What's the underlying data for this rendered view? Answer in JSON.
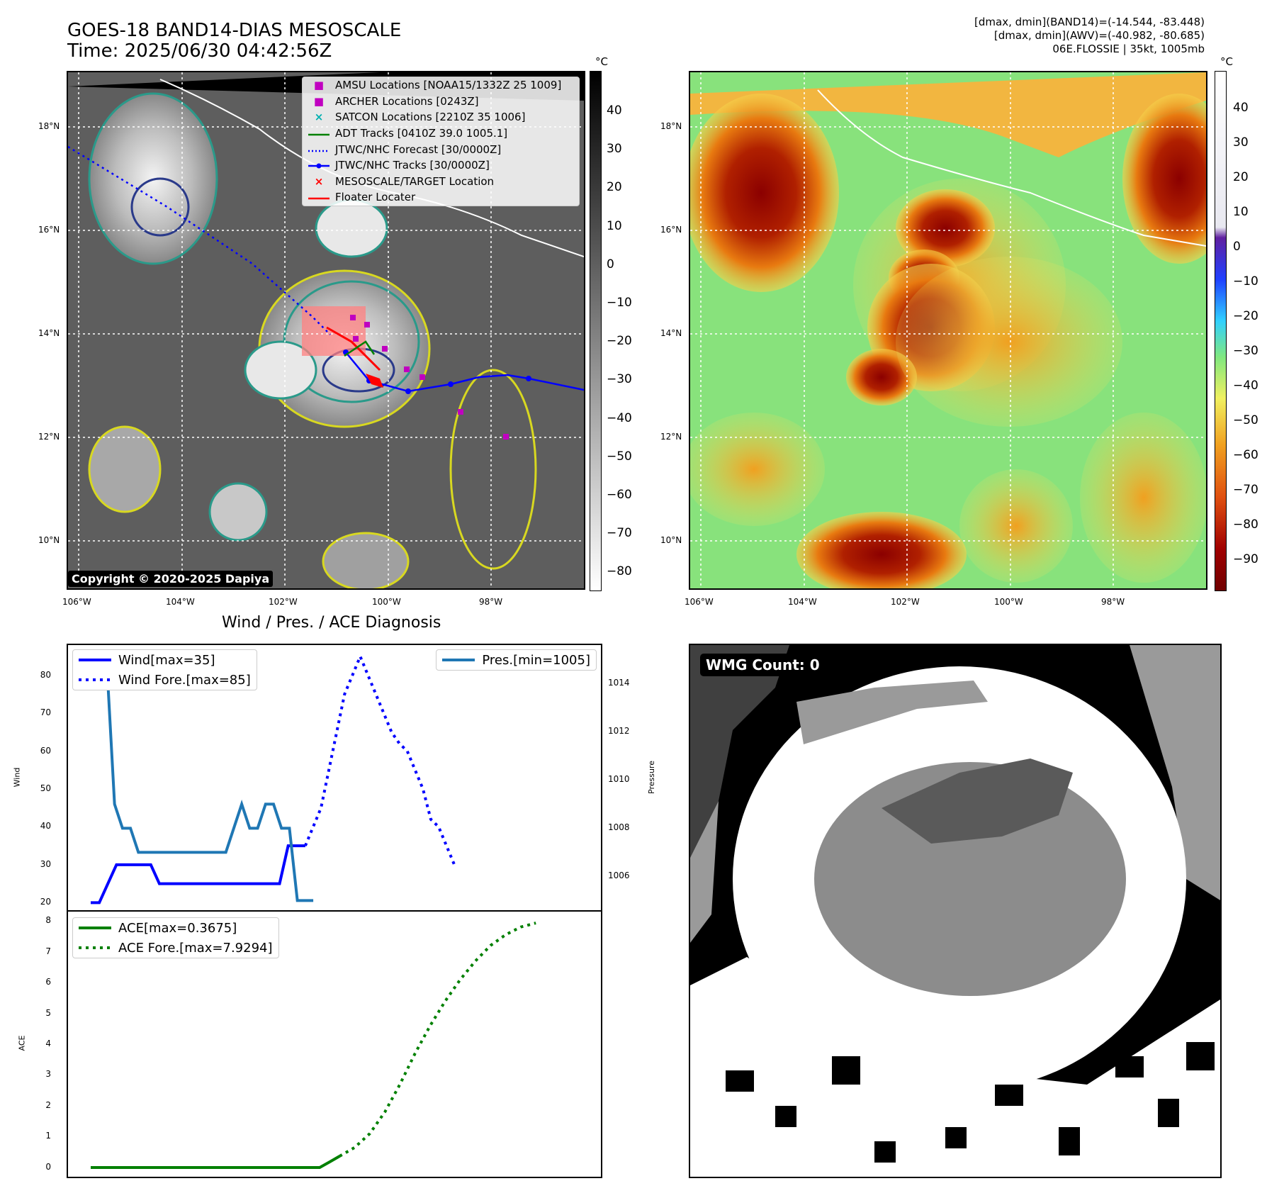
{
  "header": {
    "title_line1": "GOES-18 BAND14-DIAS MESOSCALE",
    "title_line2": "Time: 2025/06/30 04:42:56Z",
    "info_line1": "[dmax, dmin](BAND14)=(-14.544, -83.448)",
    "info_line2": "[dmax, dmin](AWV)=(-40.982, -80.685)",
    "info_line3": "06E.FLOSSIE | 35kt, 1005mb"
  },
  "map": {
    "lat_ticks": [
      "18°N",
      "16°N",
      "14°N",
      "12°N",
      "10°N"
    ],
    "lon_ticks": [
      "106°W",
      "104°W",
      "102°W",
      "100°W",
      "98°W"
    ],
    "copyright": "Copyright © 2020-2025 Dapiya",
    "legend": [
      {
        "label": "AMSU Locations [NOAA15/1332Z 25 1009]",
        "symbol": "■",
        "color": "#c000c0"
      },
      {
        "label": "ARCHER Locations [0243Z]",
        "symbol": "■",
        "color": "#c000c0"
      },
      {
        "label": "SATCON Locations [2210Z 35 1006]",
        "symbol": "×",
        "color": "#00b0b0"
      },
      {
        "label": "ADT Tracks [0410Z 39.0 1005.1]",
        "symbol": "line",
        "color": "#008000"
      },
      {
        "label": "JTWC/NHC Forecast [30/0000Z]",
        "symbol": "dotted",
        "color": "#0000ff"
      },
      {
        "label": "JTWC/NHC Tracks [30/0000Z]",
        "symbol": "line-dot",
        "color": "#0000ff"
      },
      {
        "label": "MESOSCALE/TARGET Location",
        "symbol": "×",
        "color": "#ff0000"
      },
      {
        "label": "Floater Locater",
        "symbol": "line",
        "color": "#ff0000"
      }
    ]
  },
  "colorbar_left": {
    "unit": "°C",
    "ticks": [
      "40",
      "30",
      "20",
      "10",
      "0",
      "−10",
      "−20",
      "−30",
      "−40",
      "−50",
      "−60",
      "−70",
      "−80"
    ]
  },
  "colorbar_right": {
    "unit": "°C",
    "ticks": [
      "40",
      "30",
      "20",
      "10",
      "0",
      "−10",
      "−20",
      "−30",
      "−40",
      "−50",
      "−60",
      "−70",
      "−80",
      "−90"
    ]
  },
  "wmg": {
    "label": "WMG Count: 0"
  },
  "chart_data": [
    {
      "type": "line",
      "title": "Wind / Pres. / ACE Diagnosis",
      "ylabel": "Wind",
      "y2label": "Pressure",
      "ylim": [
        18,
        88
      ],
      "y2lim": [
        1004.6,
        1015.6
      ],
      "yticks": [
        "80",
        "70",
        "60",
        "50",
        "40",
        "30",
        "20"
      ],
      "y2ticks": [
        "1014",
        "1012",
        "1010",
        "1008",
        "1006"
      ],
      "series": [
        {
          "name": "Wind[max=35]",
          "axis": "left",
          "style": "solid",
          "color": "#0000ff",
          "values": [
            20,
            20,
            25,
            30,
            30,
            30,
            30,
            30,
            25,
            25,
            25,
            25,
            25,
            25,
            25,
            25,
            25,
            25,
            25,
            25,
            25,
            25,
            25,
            35,
            35,
            35
          ]
        },
        {
          "name": "Wind Fore.[max=85]",
          "axis": "left",
          "style": "dotted",
          "color": "#0000ff",
          "values": [
            35,
            40,
            45,
            55,
            65,
            75,
            80,
            85,
            80,
            75,
            70,
            65,
            62,
            60,
            55,
            50,
            42,
            40,
            35,
            30
          ]
        },
        {
          "name": "Pres.[min=1005]",
          "axis": "right",
          "style": "solid",
          "color": "#1f77b4",
          "values": [
            1015,
            1015,
            1015,
            1009,
            1008,
            1008,
            1007,
            1007,
            1007,
            1007,
            1007,
            1007,
            1007,
            1007,
            1007,
            1007,
            1007,
            1007,
            1008,
            1009,
            1008,
            1008,
            1009,
            1009,
            1008,
            1008,
            1005,
            1005,
            1005
          ]
        }
      ]
    },
    {
      "type": "line",
      "ylabel": "ACE",
      "ylim": [
        -0.3,
        8.3
      ],
      "yticks": [
        "8",
        "7",
        "6",
        "5",
        "4",
        "3",
        "2",
        "1",
        "0"
      ],
      "series": [
        {
          "name": "ACE[max=0.3675]",
          "style": "solid",
          "color": "#008000",
          "values": [
            0,
            0,
            0,
            0,
            0,
            0,
            0,
            0,
            0,
            0,
            0,
            0,
            0,
            0,
            0,
            0,
            0,
            0,
            0,
            0,
            0,
            0,
            0,
            0,
            0.18,
            0.3675
          ]
        },
        {
          "name": "ACE Fore.[max=7.9294]",
          "style": "dotted",
          "color": "#008000",
          "values": [
            0.3675,
            0.65,
            1.1,
            1.8,
            2.7,
            3.7,
            4.6,
            5.4,
            6.1,
            6.7,
            7.2,
            7.55,
            7.8,
            7.9294
          ]
        }
      ]
    }
  ]
}
